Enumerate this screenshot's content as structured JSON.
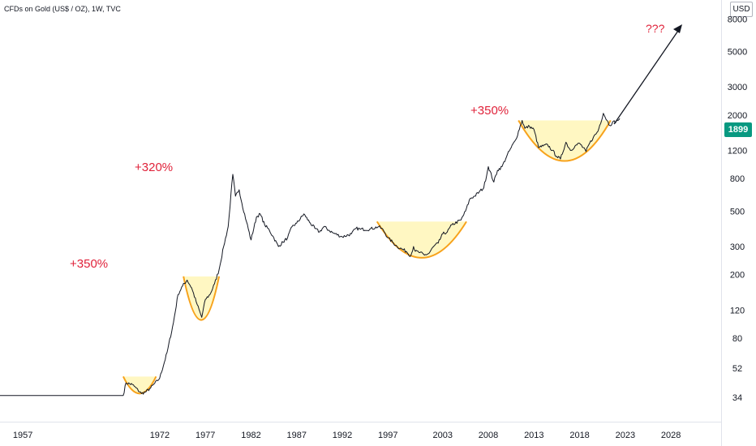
{
  "header": {
    "title": "CFDs on Gold (US$ / OZ), 1W, TVC",
    "currency": "USD",
    "last_price": "1899"
  },
  "colors": {
    "line": "#131722",
    "bowl_fill": "#fff7c2",
    "bowl_curve": "#f7a21b",
    "annotation": "#e0223a",
    "price_badge": "#089981"
  },
  "chart_data": {
    "type": "line",
    "title": "CFDs on Gold (US$ / OZ), 1W, TVC",
    "xlabel": "",
    "ylabel": "",
    "y_scale": "log",
    "ylim": [
      24,
      10500
    ],
    "xlim": [
      1954.5,
      2033.5
    ],
    "x_ticks": [
      "1957",
      "1972",
      "1977",
      "1982",
      "1987",
      "1992",
      "1997",
      "2003",
      "2008",
      "2013",
      "2018",
      "2023",
      "2028"
    ],
    "y_ticks": [
      34,
      52,
      80,
      120,
      200,
      300,
      500,
      800,
      1200,
      2000,
      3000,
      5000,
      8000
    ],
    "grid": false,
    "legend": "none",
    "series": [
      {
        "values": [
          [
            1954.5,
            35
          ],
          [
            1968.0,
            35
          ],
          [
            1968.3,
            42
          ],
          [
            1969.0,
            41
          ],
          [
            1970.0,
            36
          ],
          [
            1970.5,
            37
          ],
          [
            1971.0,
            39
          ],
          [
            1972.0,
            45
          ],
          [
            1972.8,
            65
          ],
          [
            1973.5,
            100
          ],
          [
            1974.0,
            150
          ],
          [
            1974.5,
            170
          ],
          [
            1975.0,
            185
          ],
          [
            1975.5,
            165
          ],
          [
            1976.0,
            135
          ],
          [
            1976.6,
            108
          ],
          [
            1977.0,
            140
          ],
          [
            1977.5,
            150
          ],
          [
            1978.0,
            175
          ],
          [
            1978.5,
            215
          ],
          [
            1979.0,
            300
          ],
          [
            1979.5,
            400
          ],
          [
            1980.0,
            850
          ],
          [
            1980.3,
            620
          ],
          [
            1980.7,
            680
          ],
          [
            1981.0,
            560
          ],
          [
            1981.5,
            430
          ],
          [
            1982.0,
            330
          ],
          [
            1982.6,
            460
          ],
          [
            1983.0,
            480
          ],
          [
            1983.5,
            410
          ],
          [
            1984.0,
            380
          ],
          [
            1984.5,
            340
          ],
          [
            1985.0,
            300
          ],
          [
            1985.5,
            320
          ],
          [
            1986.0,
            340
          ],
          [
            1986.5,
            400
          ],
          [
            1987.0,
            420
          ],
          [
            1987.8,
            480
          ],
          [
            1988.0,
            460
          ],
          [
            1988.5,
            420
          ],
          [
            1989.0,
            390
          ],
          [
            1989.5,
            370
          ],
          [
            1990.0,
            400
          ],
          [
            1990.5,
            380
          ],
          [
            1991.0,
            365
          ],
          [
            1992.0,
            345
          ],
          [
            1993.0,
            360
          ],
          [
            1993.5,
            390
          ],
          [
            1994.0,
            385
          ],
          [
            1995.0,
            385
          ],
          [
            1996.0,
            400
          ],
          [
            1996.5,
            380
          ],
          [
            1997.0,
            340
          ],
          [
            1997.5,
            320
          ],
          [
            1998.0,
            300
          ],
          [
            1998.5,
            290
          ],
          [
            1999.0,
            280
          ],
          [
            1999.5,
            262
          ],
          [
            1999.8,
            300
          ],
          [
            2000.0,
            280
          ],
          [
            2000.5,
            275
          ],
          [
            2001.0,
            265
          ],
          [
            2001.5,
            272
          ],
          [
            2002.0,
            300
          ],
          [
            2002.5,
            315
          ],
          [
            2003.0,
            360
          ],
          [
            2003.5,
            370
          ],
          [
            2004.0,
            410
          ],
          [
            2005.0,
            440
          ],
          [
            2005.5,
            500
          ],
          [
            2006.0,
            600
          ],
          [
            2006.5,
            620
          ],
          [
            2007.0,
            660
          ],
          [
            2007.5,
            700
          ],
          [
            2008.0,
            950
          ],
          [
            2008.6,
            760
          ],
          [
            2009.0,
            900
          ],
          [
            2009.5,
            950
          ],
          [
            2010.0,
            1100
          ],
          [
            2010.5,
            1250
          ],
          [
            2011.0,
            1400
          ],
          [
            2011.7,
            1850
          ],
          [
            2012.0,
            1650
          ],
          [
            2012.5,
            1700
          ],
          [
            2013.0,
            1620
          ],
          [
            2013.5,
            1250
          ],
          [
            2014.0,
            1280
          ],
          [
            2014.5,
            1300
          ],
          [
            2015.0,
            1200
          ],
          [
            2015.5,
            1100
          ],
          [
            2015.9,
            1060
          ],
          [
            2016.5,
            1350
          ],
          [
            2017.0,
            1200
          ],
          [
            2017.5,
            1280
          ],
          [
            2018.0,
            1330
          ],
          [
            2018.7,
            1180
          ],
          [
            2019.0,
            1300
          ],
          [
            2019.5,
            1450
          ],
          [
            2020.0,
            1580
          ],
          [
            2020.6,
            2050
          ],
          [
            2021.0,
            1850
          ],
          [
            2021.3,
            1720
          ],
          [
            2021.6,
            1800
          ],
          [
            2022.0,
            1820
          ],
          [
            2022.4,
            1899
          ]
        ]
      }
    ],
    "annotations": [
      "+350%",
      "+320%",
      "+350%",
      "???"
    ]
  }
}
